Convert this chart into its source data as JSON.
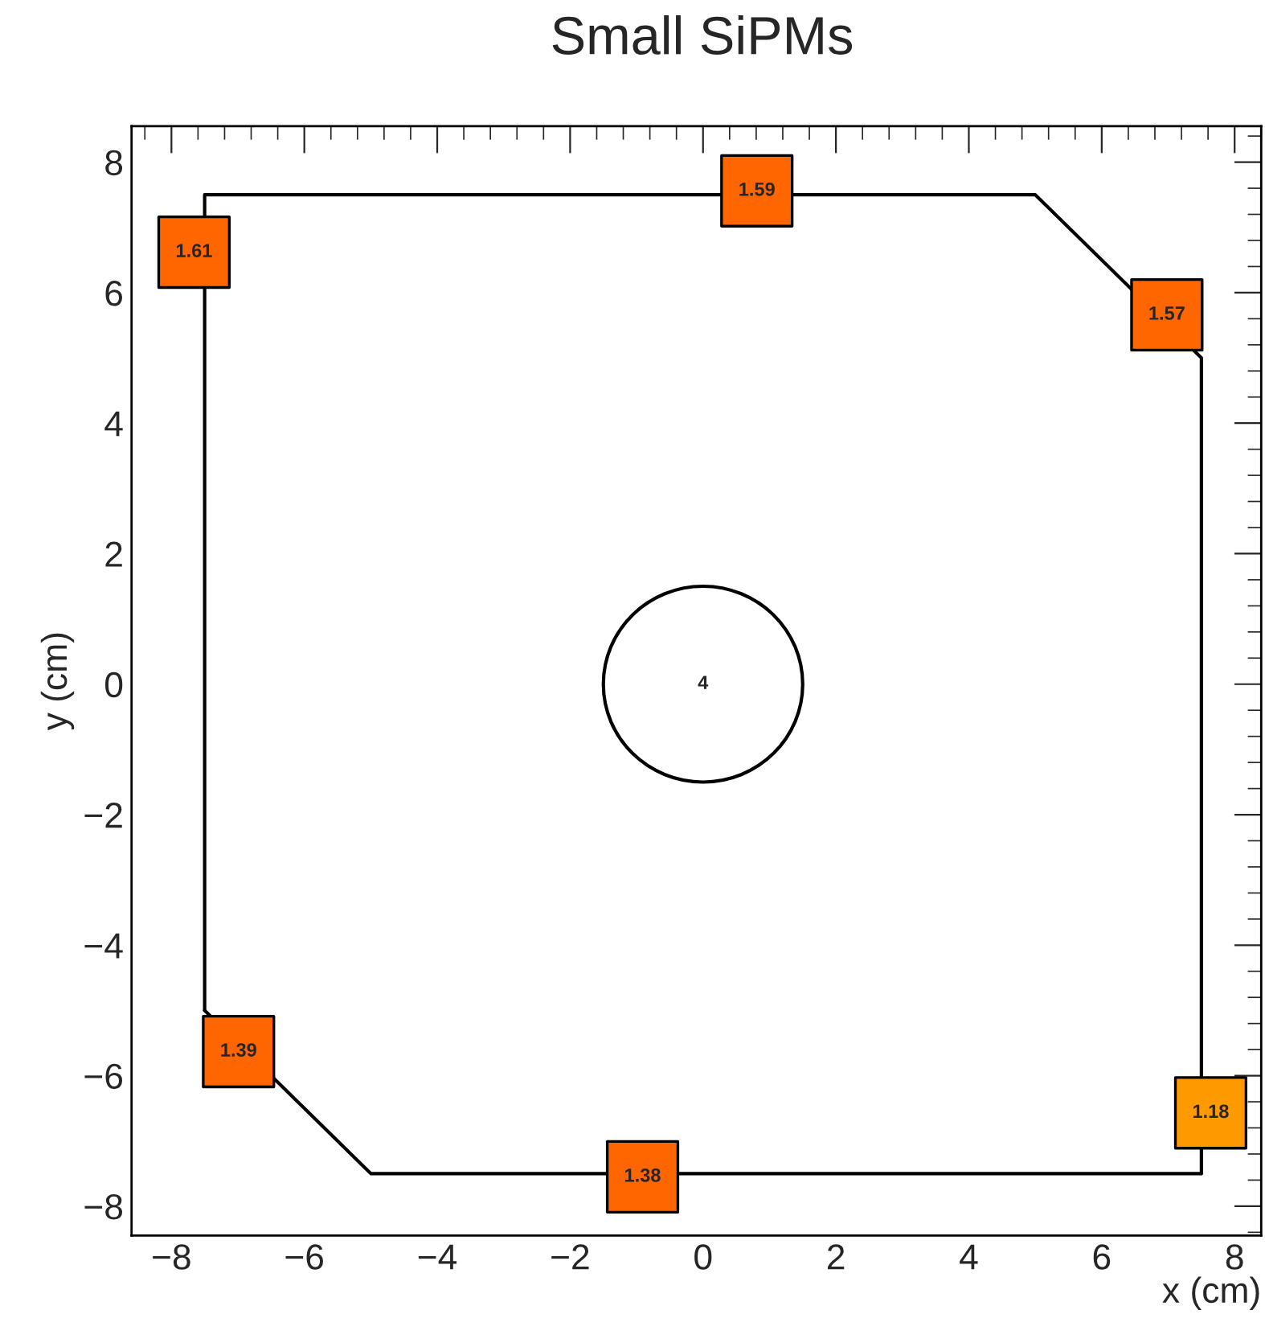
{
  "chart_data": {
    "type": "line",
    "title": "Small SiPMs",
    "xlabel": "x (cm)",
    "ylabel": "y (cm)",
    "xlim": [
      -8.6,
      8.4
    ],
    "ylim": [
      -8.45,
      8.55
    ],
    "xticks": [
      {
        "value": -8,
        "label": "−8"
      },
      {
        "value": -6,
        "label": "−6"
      },
      {
        "value": -4,
        "label": "−4"
      },
      {
        "value": -2,
        "label": "−2"
      },
      0,
      2,
      4,
      6,
      8
    ],
    "yticks": [
      {
        "value": -8,
        "label": "−8"
      },
      {
        "value": -6,
        "label": "−6"
      },
      {
        "value": -4,
        "label": "−4"
      },
      {
        "value": -2,
        "label": "−2"
      },
      0,
      2,
      4,
      6,
      8
    ],
    "grid": false,
    "series": [
      {
        "color": "#000000",
        "x": [
          -7.5,
          -7.5,
          5,
          7.5,
          7.5
        ],
        "values": [
          -5,
          7.5,
          7.5,
          5,
          -7.5
        ]
      },
      {
        "color": "#000000",
        "x": [
          -7.5,
          -5,
          7.5
        ],
        "values": [
          -5,
          -7.5,
          -7.5
        ]
      },
      {
        "type": "scatter",
        "marker": "square",
        "x": [
          -7.66,
          0.81,
          6.98,
          -6.99,
          -0.91,
          7.64
        ],
        "values": [
          6.62,
          7.56,
          5.66,
          -5.63,
          -7.55,
          -6.57
        ],
        "colors": [
          "#ff6600",
          "#ff6600",
          "#ff6600",
          "#ff6600",
          "#ff6600",
          "#ff9900"
        ]
      }
    ],
    "annotations": [
      "4",
      {
        "text": "1.61",
        "x": -7.66,
        "y": 6.62
      },
      {
        "text": "1.59",
        "x": 0.81,
        "y": 7.56
      },
      {
        "text": "1.57",
        "x": 6.98,
        "y": 5.66
      },
      {
        "text": "1.39",
        "x": -6.99,
        "y": -5.63
      },
      {
        "text": "1.38",
        "x": -0.91,
        "y": -7.55
      },
      {
        "text": "1.18",
        "x": 7.64,
        "y": -6.57
      }
    ]
  }
}
